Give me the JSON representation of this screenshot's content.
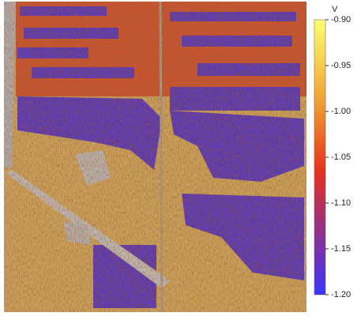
{
  "chart_data": {
    "type": "image",
    "colorbar": {
      "label": "V",
      "lim": [
        -1.2,
        -0.9
      ],
      "ticks": [
        {
          "value": -0.9,
          "label": "-0.90"
        },
        {
          "value": -0.95,
          "label": "-0.95"
        },
        {
          "value": -1.0,
          "label": "-1.00"
        },
        {
          "value": -1.05,
          "label": "-1.05"
        },
        {
          "value": -1.1,
          "label": "-1.10"
        },
        {
          "value": -1.15,
          "label": "-1.15"
        },
        {
          "value": -1.2,
          "label": "-1.20"
        }
      ]
    }
  }
}
